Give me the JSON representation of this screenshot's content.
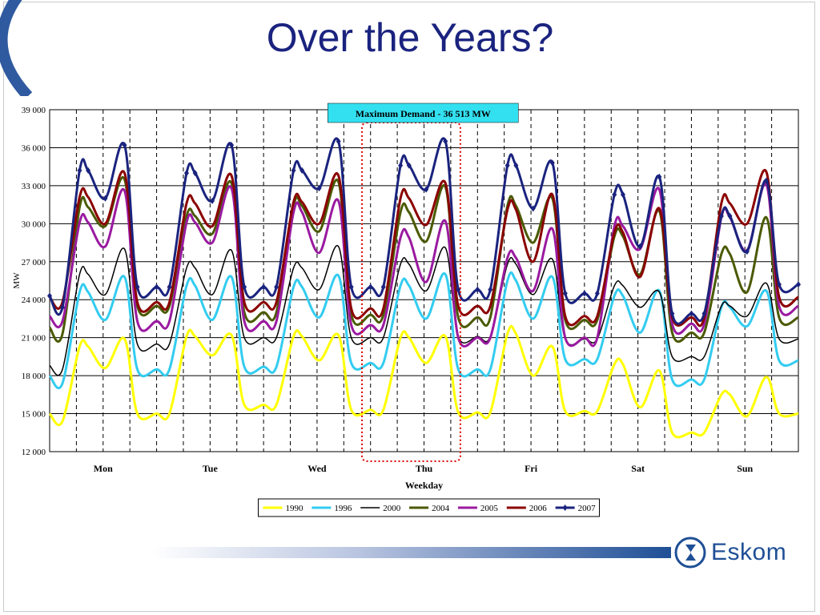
{
  "slide": {
    "title": "Over the Years?",
    "logo_text": "Eskom",
    "accent_color": "#1a237e",
    "logo_color": "#1f4f96"
  },
  "chart_data": {
    "type": "line",
    "title": "",
    "xlabel": "Weekday",
    "ylabel": "MW",
    "ylim": [
      12000,
      39000
    ],
    "yticks": [
      12000,
      15000,
      18000,
      21000,
      24000,
      27000,
      30000,
      33000,
      36000,
      39000
    ],
    "ytick_labels": [
      "12 000",
      "15 000",
      "18 000",
      "21 000",
      "24 000",
      "27 000",
      "30 000",
      "33 000",
      "36 000",
      "39 000"
    ],
    "categories": [
      "Mon",
      "Tue",
      "Wed",
      "Thu",
      "Fri",
      "Sat",
      "Sun"
    ],
    "grid": true,
    "legend_position": "bottom-center",
    "annotation": {
      "text": "Maximum Demand - 36 513 MW",
      "highlight_day": "Thu",
      "highlight_color": "#e00000",
      "box_color": "#33e0f0"
    },
    "series": [
      {
        "name": "1990",
        "color": "#ffff00",
        "marker": "none",
        "days": [
          {
            "am_start": 15000,
            "night_min": 14400,
            "m1": 20300,
            "mid": 18600,
            "eve": 20900,
            "valley": 15000
          },
          {
            "am_start": 15000,
            "night_min": 15000,
            "m1": 21100,
            "mid": 19600,
            "eve": 21200,
            "valley": 15700
          },
          {
            "am_start": 15700,
            "night_min": 15700,
            "m1": 21100,
            "mid": 19200,
            "eve": 21200,
            "valley": 15300
          },
          {
            "am_start": 15300,
            "night_min": 15300,
            "m1": 21000,
            "mid": 19000,
            "eve": 21100,
            "valley": 15100
          },
          {
            "am_start": 15100,
            "night_min": 15100,
            "m1": 21300,
            "mid": 18000,
            "eve": 20300,
            "valley": 15200
          },
          {
            "am_start": 15200,
            "night_min": 15200,
            "m1": 18900,
            "mid": 15500,
            "eve": 18400,
            "valley": 13500
          },
          {
            "am_start": 13500,
            "night_min": 13500,
            "m1": 16500,
            "mid": 14800,
            "eve": 17900,
            "valley": 15000
          }
        ]
      },
      {
        "name": "1996",
        "color": "#33ccf0",
        "marker": "none",
        "days": [
          {
            "am_start": 18000,
            "night_min": 17400,
            "m1": 24600,
            "mid": 22400,
            "eve": 25800,
            "valley": 18500
          },
          {
            "am_start": 18500,
            "night_min": 18500,
            "m1": 25100,
            "mid": 22400,
            "eve": 25800,
            "valley": 18700
          },
          {
            "am_start": 18700,
            "night_min": 18700,
            "m1": 25000,
            "mid": 22600,
            "eve": 25900,
            "valley": 19000
          },
          {
            "am_start": 19000,
            "night_min": 19000,
            "m1": 25100,
            "mid": 22500,
            "eve": 26000,
            "valley": 18500
          },
          {
            "am_start": 18500,
            "night_min": 18500,
            "m1": 25500,
            "mid": 22500,
            "eve": 25800,
            "valley": 19300
          },
          {
            "am_start": 19300,
            "night_min": 19300,
            "m1": 24300,
            "mid": 21400,
            "eve": 24700,
            "valley": 17700
          },
          {
            "am_start": 17700,
            "night_min": 17700,
            "m1": 23400,
            "mid": 21900,
            "eve": 24700,
            "valley": 19200
          }
        ]
      },
      {
        "name": "2000",
        "color": "#000000",
        "marker": "none",
        "days": [
          {
            "am_start": 18800,
            "night_min": 18500,
            "m1": 26000,
            "mid": 24400,
            "eve": 28000,
            "valley": 20500
          },
          {
            "am_start": 20500,
            "night_min": 20500,
            "m1": 26500,
            "mid": 24400,
            "eve": 27900,
            "valley": 21000
          },
          {
            "am_start": 21000,
            "night_min": 21000,
            "m1": 26500,
            "mid": 24800,
            "eve": 28200,
            "valley": 21000
          },
          {
            "am_start": 21000,
            "night_min": 21000,
            "m1": 26800,
            "mid": 24700,
            "eve": 28100,
            "valley": 21100
          },
          {
            "am_start": 21100,
            "night_min": 21100,
            "m1": 26800,
            "mid": 24400,
            "eve": 27200,
            "valley": 20900
          },
          {
            "am_start": 20900,
            "night_min": 20900,
            "m1": 25100,
            "mid": 23400,
            "eve": 24600,
            "valley": 19500
          },
          {
            "am_start": 19500,
            "night_min": 19500,
            "m1": 23500,
            "mid": 22700,
            "eve": 25300,
            "valley": 20900
          }
        ]
      },
      {
        "name": "2004",
        "color": "#4a5a00",
        "marker": "none",
        "days": [
          {
            "am_start": 21800,
            "night_min": 21300,
            "m1": 31300,
            "mid": 29800,
            "eve": 33500,
            "valley": 23500
          },
          {
            "am_start": 23500,
            "night_min": 23500,
            "m1": 30600,
            "mid": 29200,
            "eve": 33200,
            "valley": 23000
          },
          {
            "am_start": 23000,
            "night_min": 23000,
            "m1": 31400,
            "mid": 29400,
            "eve": 33300,
            "valley": 22800
          },
          {
            "am_start": 22800,
            "night_min": 22800,
            "m1": 30900,
            "mid": 28600,
            "eve": 32900,
            "valley": 22600
          },
          {
            "am_start": 22600,
            "night_min": 22600,
            "m1": 31400,
            "mid": 28500,
            "eve": 32000,
            "valley": 22400
          },
          {
            "am_start": 22400,
            "night_min": 22400,
            "m1": 29000,
            "mid": 26000,
            "eve": 31000,
            "valley": 21400
          },
          {
            "am_start": 21400,
            "night_min": 21400,
            "m1": 27600,
            "mid": 24600,
            "eve": 30500,
            "valley": 22600
          }
        ]
      },
      {
        "name": "2005",
        "color": "#9a1aa0",
        "marker": "none",
        "days": [
          {
            "am_start": 22700,
            "night_min": 22300,
            "m1": 30100,
            "mid": 28200,
            "eve": 32600,
            "valley": 22300
          },
          {
            "am_start": 22300,
            "night_min": 22300,
            "m1": 30100,
            "mid": 28500,
            "eve": 32800,
            "valley": 22300
          },
          {
            "am_start": 22300,
            "night_min": 22300,
            "m1": 30900,
            "mid": 27700,
            "eve": 31800,
            "valley": 22000
          },
          {
            "am_start": 22000,
            "night_min": 22000,
            "m1": 28900,
            "mid": 25400,
            "eve": 30200,
            "valley": 21000
          },
          {
            "am_start": 21000,
            "night_min": 21000,
            "m1": 27300,
            "mid": 24700,
            "eve": 29600,
            "valley": 21000
          },
          {
            "am_start": 21000,
            "night_min": 21000,
            "m1": 29800,
            "mid": 28000,
            "eve": 32700,
            "valley": 22100
          },
          {
            "am_start": 22100,
            "night_min": 22100,
            "m1": 30500,
            "mid": 27900,
            "eve": 33100,
            "valley": 23500
          }
        ]
      },
      {
        "name": "2006",
        "color": "#8b0000",
        "marker": "none",
        "days": [
          {
            "am_start": 24200,
            "night_min": 23800,
            "m1": 32100,
            "mid": 30000,
            "eve": 34000,
            "valley": 23800
          },
          {
            "am_start": 23800,
            "night_min": 23800,
            "m1": 31600,
            "mid": 29800,
            "eve": 33800,
            "valley": 23800
          },
          {
            "am_start": 23800,
            "night_min": 23800,
            "m1": 31700,
            "mid": 30000,
            "eve": 33800,
            "valley": 23300
          },
          {
            "am_start": 23300,
            "night_min": 23300,
            "m1": 32000,
            "mid": 29900,
            "eve": 33200,
            "valley": 23500
          },
          {
            "am_start": 23500,
            "night_min": 23500,
            "m1": 31100,
            "mid": 27000,
            "eve": 32300,
            "valley": 22700
          },
          {
            "am_start": 22700,
            "night_min": 22700,
            "m1": 29300,
            "mid": 25800,
            "eve": 31200,
            "valley": 22600
          },
          {
            "am_start": 22600,
            "night_min": 22600,
            "m1": 31600,
            "mid": 30000,
            "eve": 34100,
            "valley": 24200
          }
        ]
      },
      {
        "name": "2007",
        "color": "#1a237e",
        "marker": "diamond",
        "days": [
          {
            "am_start": 24300,
            "night_min": 23400,
            "m1": 34200,
            "mid": 32000,
            "eve": 36200,
            "valley": 25000
          },
          {
            "am_start": 25000,
            "night_min": 25000,
            "m1": 34000,
            "mid": 31800,
            "eve": 36200,
            "valley": 25000
          },
          {
            "am_start": 25000,
            "night_min": 25000,
            "m1": 34200,
            "mid": 32800,
            "eve": 36500,
            "valley": 25000
          },
          {
            "am_start": 25000,
            "night_min": 25000,
            "m1": 34600,
            "mid": 32700,
            "eve": 36513,
            "valley": 24800
          },
          {
            "am_start": 24800,
            "night_min": 24800,
            "m1": 34600,
            "mid": 31200,
            "eve": 34800,
            "valley": 24500
          },
          {
            "am_start": 24500,
            "night_min": 24500,
            "m1": 32300,
            "mid": 28200,
            "eve": 33700,
            "valley": 22900
          },
          {
            "am_start": 22900,
            "night_min": 22900,
            "m1": 30600,
            "mid": 27800,
            "eve": 33400,
            "valley": 25200
          }
        ]
      }
    ]
  }
}
